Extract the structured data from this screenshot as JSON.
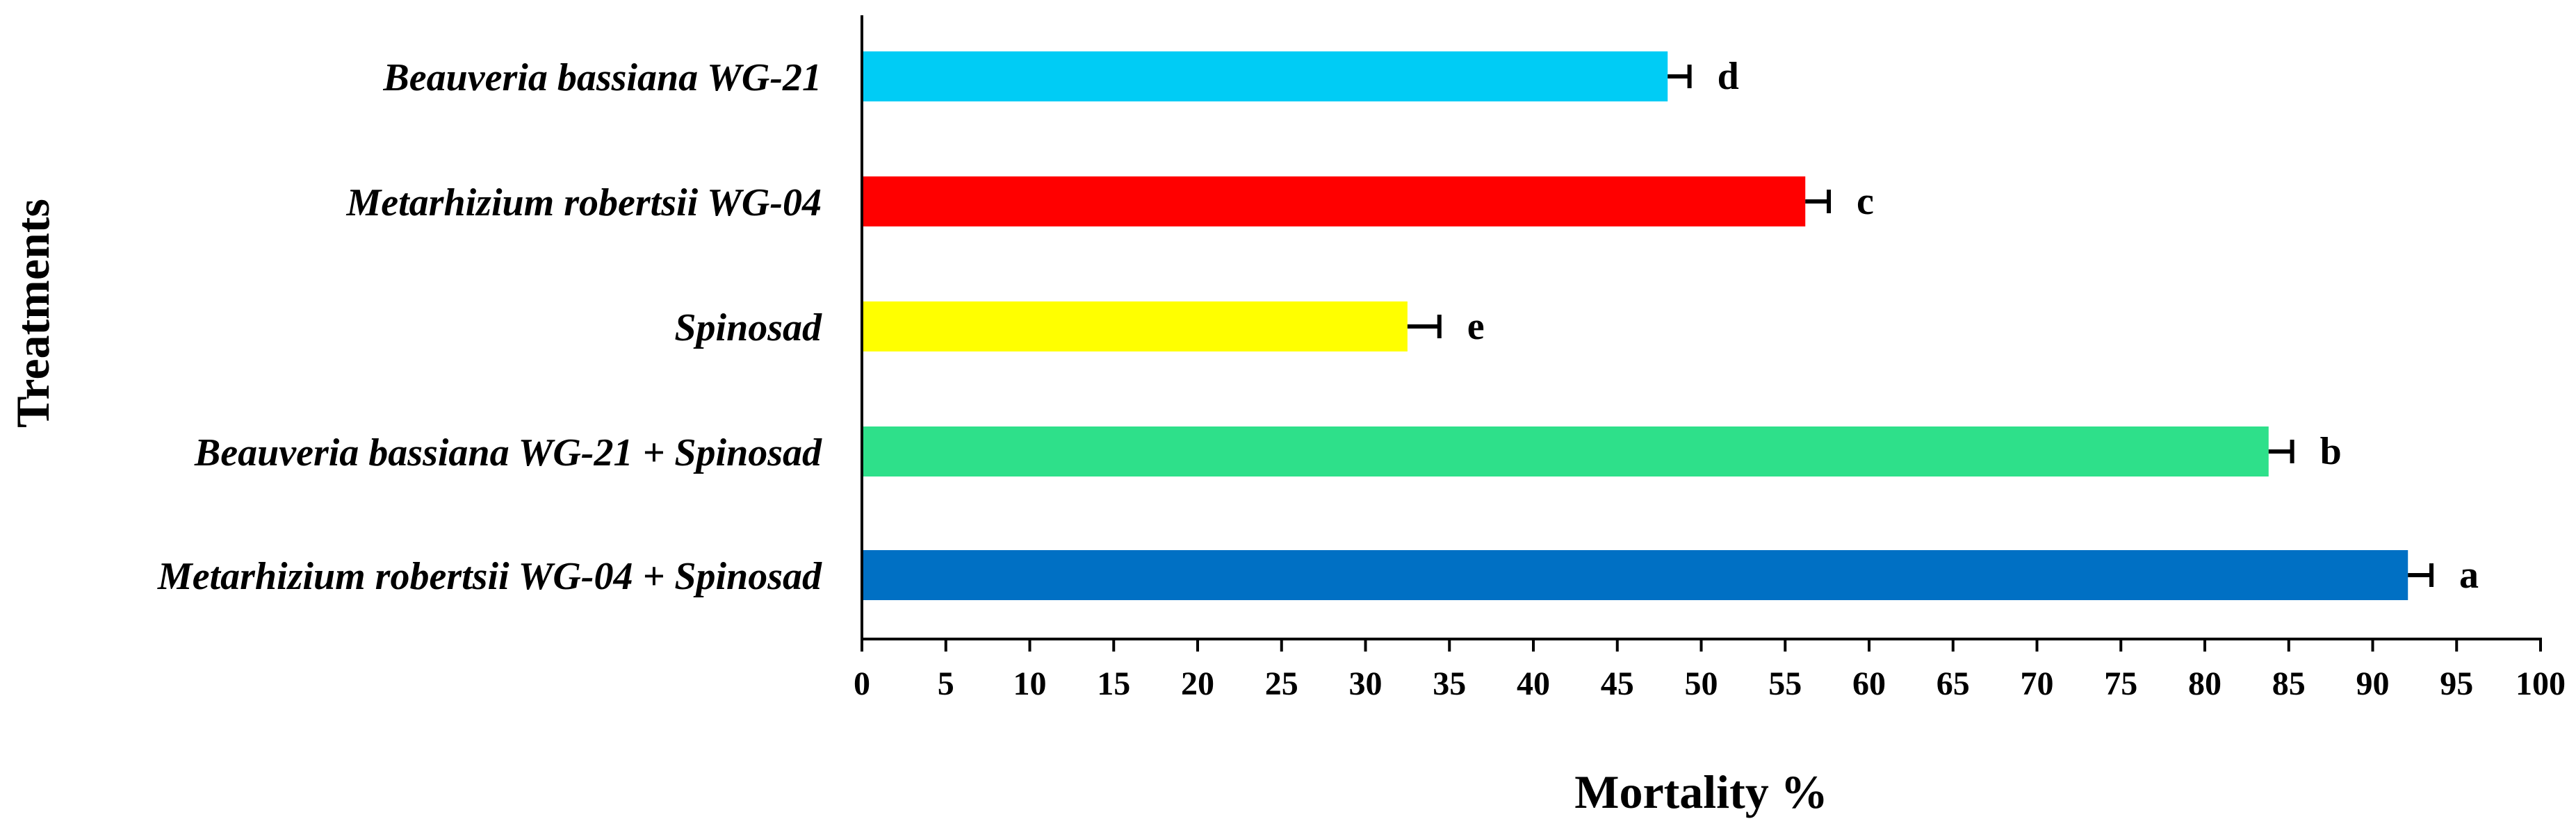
{
  "chart_data": {
    "type": "bar",
    "orientation": "horizontal",
    "categories": [
      "Beauveria bassiana WG-21",
      "Metarhizium robertsii WG-04",
      "Spinosad",
      "Beauveria bassiana WG-21 + Spinosad",
      "Metarhizium robertsii WG-04 + Spinosad"
    ],
    "values": [
      48.0,
      56.2,
      32.5,
      83.8,
      92.1
    ],
    "errors": [
      1.3,
      1.4,
      1.9,
      1.4,
      1.4
    ],
    "significance_letters": [
      "d",
      "c",
      "e",
      "b",
      "a"
    ],
    "colors": [
      "#00CCF5",
      "#FF0000",
      "#FFFF00",
      "#2EE08A",
      "#0070C4"
    ],
    "xlabel": "Mortality %",
    "ylabel": "Treatments",
    "xlim": [
      0,
      100
    ],
    "xticks": [
      0,
      5,
      10,
      15,
      20,
      25,
      30,
      35,
      40,
      45,
      50,
      55,
      60,
      65,
      70,
      75,
      80,
      85,
      90,
      95,
      100
    ],
    "grid": false,
    "legend": "none"
  }
}
